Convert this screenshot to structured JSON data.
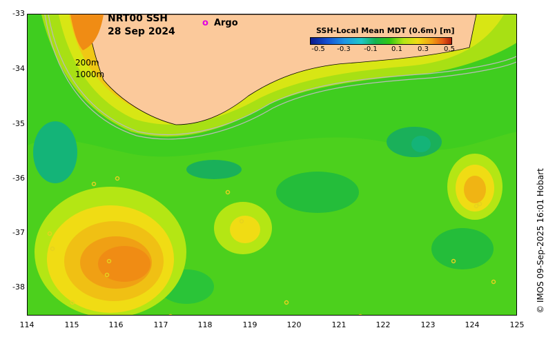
{
  "title": {
    "product": "NRT00 SSH",
    "date": "28 Sep 2024"
  },
  "legend": {
    "argo_symbol": "o",
    "argo_label": "Argo"
  },
  "isobaths": {
    "shallow": "200m",
    "deep": "1000m"
  },
  "colorbar": {
    "title": "SSH-Local Mean MDT (0.6m) [m]",
    "ticks": [
      "-0.5",
      "-0.3",
      "-0.1",
      "0.1",
      "0.3",
      "0.5"
    ],
    "range": [
      -0.5,
      0.5
    ]
  },
  "axes": {
    "x_ticks": [
      "114",
      "115",
      "116",
      "117",
      "118",
      "119",
      "120",
      "121",
      "122",
      "123",
      "124",
      "125"
    ],
    "y_ticks": [
      "-33",
      "-34",
      "-35",
      "-36",
      "-37",
      "-38"
    ],
    "lon_range": [
      114,
      125
    ],
    "lat_range": [
      -38.5,
      -33
    ]
  },
  "credit": "© IMOS 09-Sep-2025 16:01 Hobart",
  "colors": {
    "land": "#fbc99b",
    "background_green": "#3fcd1f",
    "eddy_orange": "#f08c14",
    "eddy_yellow": "#f0dc14",
    "cold_teal": "#14b478",
    "argo": "#e000e0"
  }
}
